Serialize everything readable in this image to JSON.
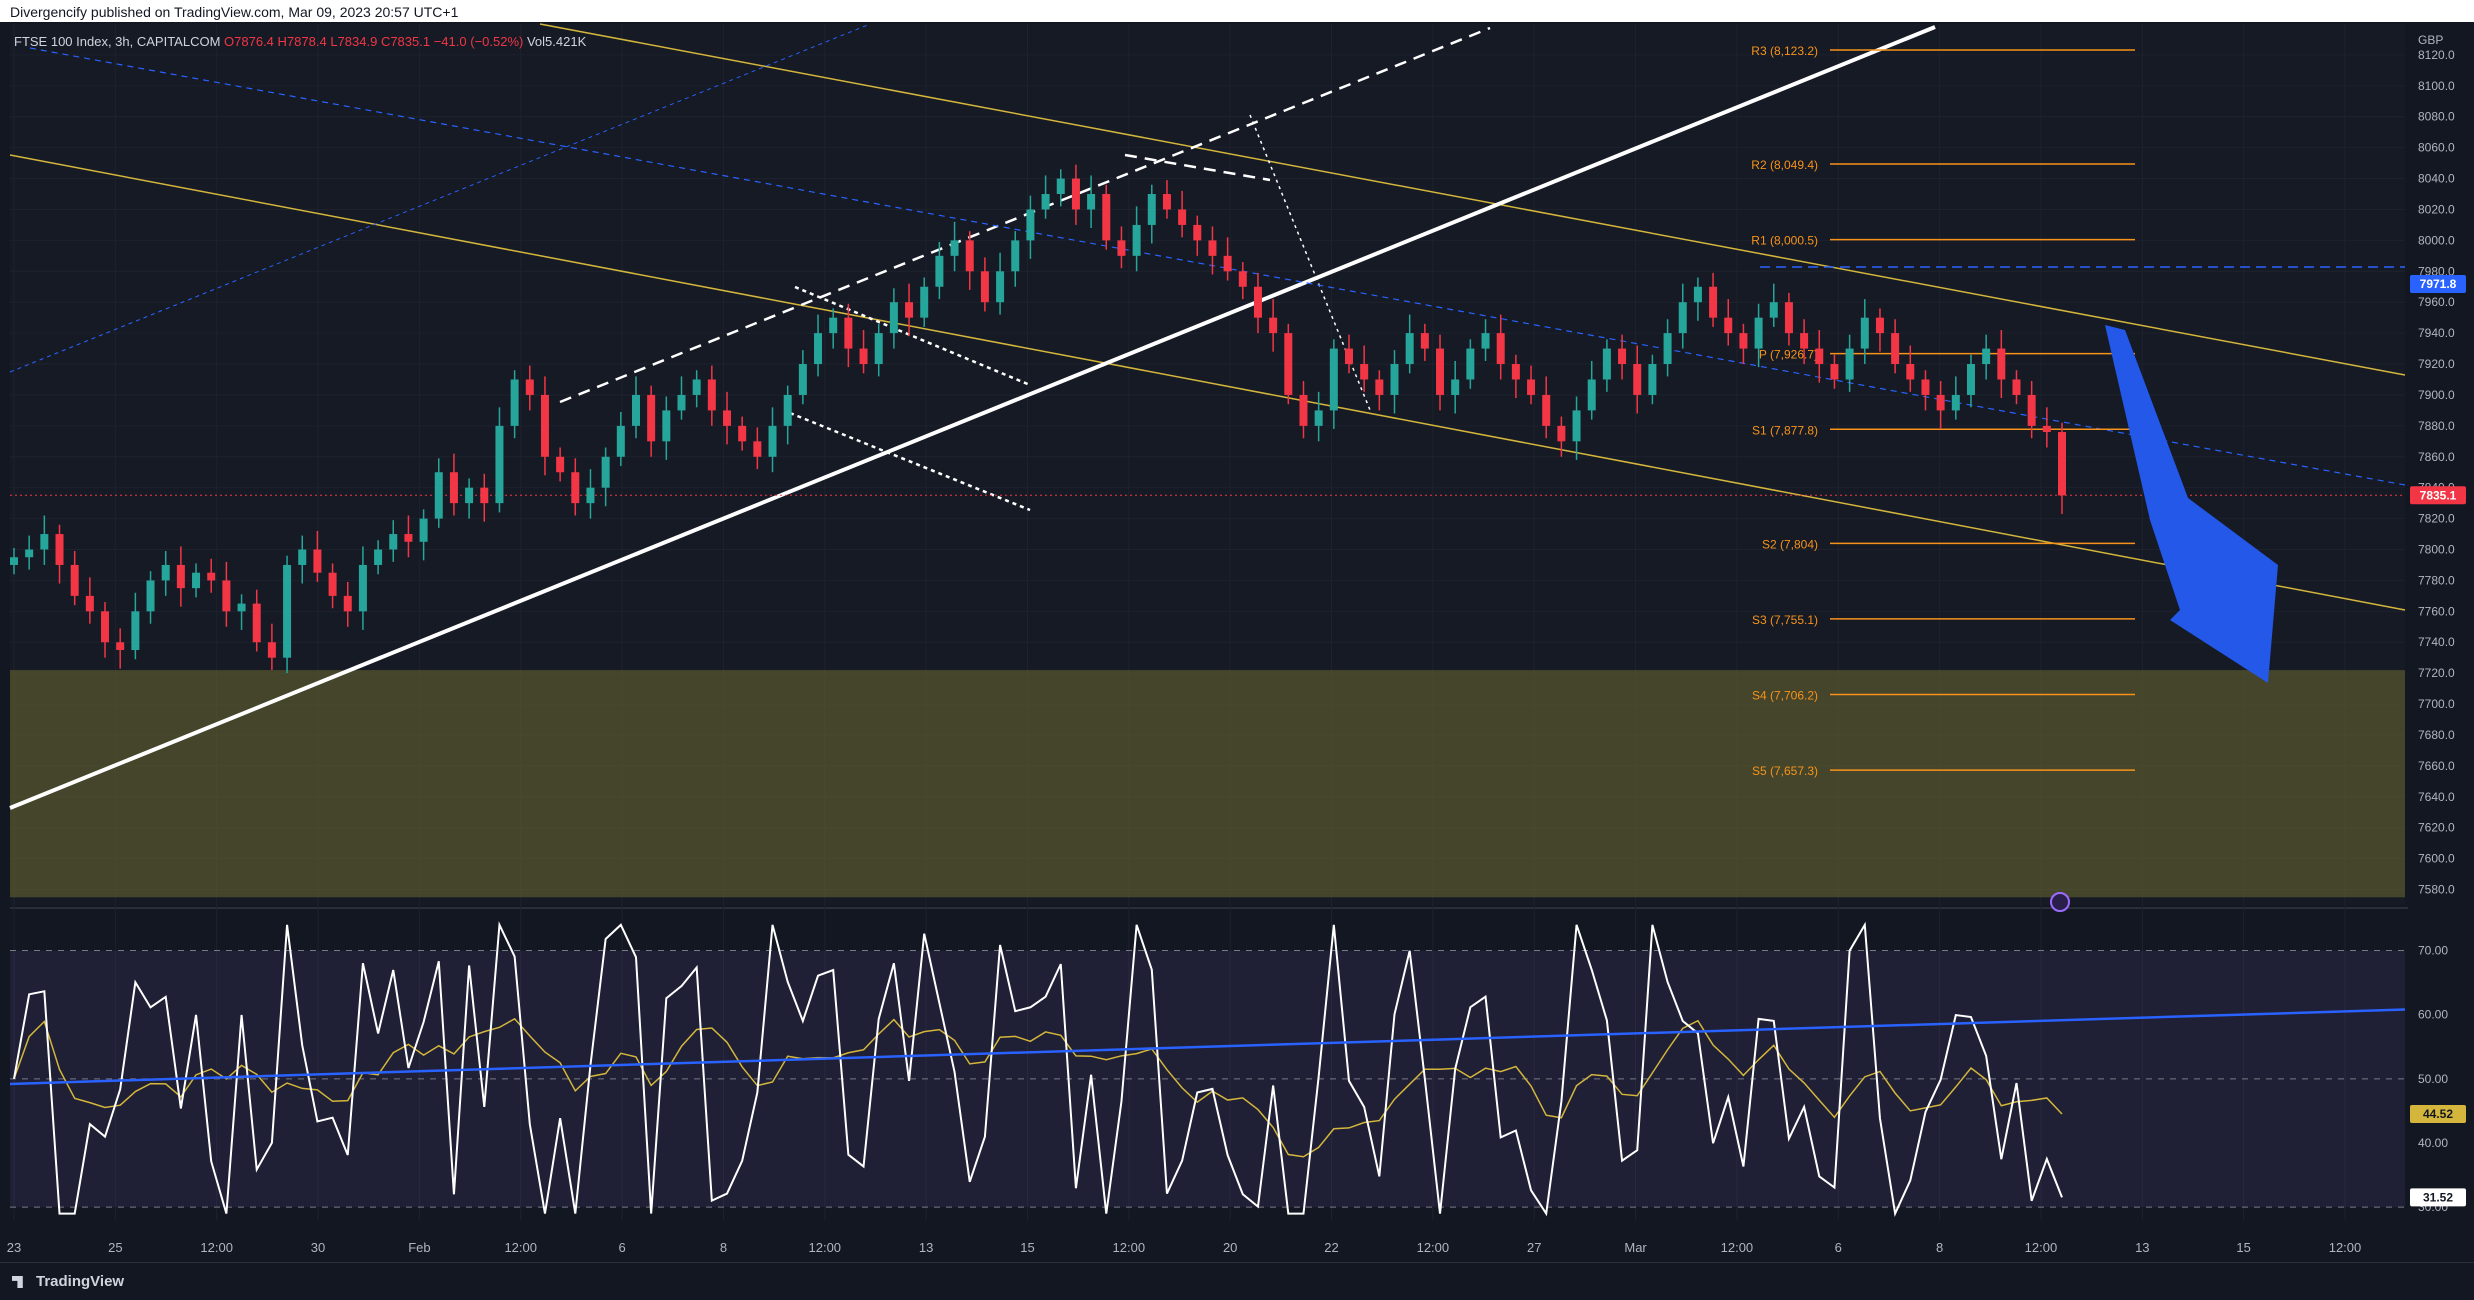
{
  "header": {
    "publisher": "Divergencify published on TradingView.com, Mar 09, 2023 20:57 UTC+1"
  },
  "legend": {
    "symbol": "FTSE 100 Index, 3h, CAPITALCOM",
    "open": "O7876.4",
    "high": "H7878.4",
    "low": "L7834.9",
    "close": "C7835.1",
    "change": "−41.0 (−0.52%)",
    "volume": "Vol5.421K"
  },
  "footer": {
    "brand": "TradingView"
  },
  "chart_data": [
    {
      "type": "candlestick",
      "title": "FTSE 100 Index, 3h, CAPITALCOM",
      "currency": "GBP",
      "ylim": [
        7570,
        8140
      ],
      "y_ticks": [
        7580,
        7600,
        7620,
        7640,
        7660,
        7680,
        7700,
        7720,
        7740,
        7760,
        7780,
        7800,
        7820,
        7840,
        7860,
        7880,
        7900,
        7920,
        7940,
        7960,
        7980,
        8000,
        8020,
        8040,
        8060,
        8080,
        8100,
        8120
      ],
      "y_tick_labels": [
        "7580.0",
        "7600.0",
        "7620.0",
        "7640.0",
        "7660.0",
        "7680.0",
        "7700.0",
        "7720.0",
        "7740.0",
        "7760.0",
        "7780.0",
        "7800.0",
        "7820.0",
        "7840.0",
        "7860.0",
        "7880.0",
        "7900.0",
        "7920.0",
        "7940.0",
        "7960.0",
        "7980.0",
        "8000.0",
        "8020.0",
        "8040.0",
        "8060.0",
        "8080.0",
        "8100.0",
        "8120.0"
      ],
      "x_tick_labels": [
        "23",
        "25",
        "12:00",
        "30",
        "Feb",
        "12:00",
        "6",
        "8",
        "12:00",
        "13",
        "15",
        "12:00",
        "20",
        "22",
        "12:00",
        "27",
        "Mar",
        "12:00",
        "6",
        "8",
        "12:00",
        "13",
        "15",
        "12:00"
      ],
      "close_series": [
        7795,
        7800,
        7810,
        7790,
        7770,
        7760,
        7740,
        7735,
        7760,
        7780,
        7790,
        7775,
        7785,
        7780,
        7760,
        7765,
        7740,
        7730,
        7790,
        7800,
        7785,
        7770,
        7760,
        7790,
        7800,
        7810,
        7805,
        7820,
        7850,
        7830,
        7840,
        7830,
        7880,
        7910,
        7900,
        7860,
        7850,
        7830,
        7840,
        7860,
        7880,
        7900,
        7870,
        7890,
        7900,
        7910,
        7890,
        7880,
        7870,
        7860,
        7880,
        7900,
        7920,
        7940,
        7950,
        7930,
        7920,
        7940,
        7960,
        7950,
        7970,
        7990,
        8000,
        7980,
        7960,
        7980,
        8000,
        8020,
        8030,
        8040,
        8020,
        8030,
        8000,
        7990,
        8010,
        8030,
        8020,
        8010,
        8000,
        7990,
        7980,
        7970,
        7950,
        7940,
        7900,
        7880,
        7890,
        7930,
        7920,
        7910,
        7900,
        7920,
        7940,
        7930,
        7900,
        7910,
        7930,
        7940,
        7920,
        7910,
        7900,
        7880,
        7870,
        7890,
        7910,
        7930,
        7920,
        7900,
        7920,
        7940,
        7960,
        7970,
        7950,
        7940,
        7930,
        7950,
        7960,
        7940,
        7930,
        7920,
        7910,
        7930,
        7950,
        7940,
        7920,
        7910,
        7900,
        7890,
        7900,
        7920,
        7930,
        7910,
        7900,
        7880,
        7876,
        7835
      ],
      "last_close": "7835.1",
      "last_close_color": "#f23645",
      "marked_level": "7971.8",
      "marked_level_color": "#2962ff",
      "pivots": [
        {
          "label": "R3 (8,123.2)",
          "value": 8123.2
        },
        {
          "label": "R2 (8,049.4)",
          "value": 8049.4
        },
        {
          "label": "R1 (8,000.5)",
          "value": 8000.5
        },
        {
          "label": "P (7,926.7)",
          "value": 7926.7
        },
        {
          "label": "S1 (7,877.8)",
          "value": 7877.8
        },
        {
          "label": "S2 (7,804)",
          "value": 7804
        },
        {
          "label": "S3 (7,755.1)",
          "value": 7755.1
        },
        {
          "label": "S4 (7,706.2)",
          "value": 7706.2
        },
        {
          "label": "S5 (7,657.3)",
          "value": 7657.3
        }
      ],
      "support_zone": [
        7575,
        7722
      ],
      "annotation": "down-arrow-projection"
    },
    {
      "type": "line",
      "title": "RSI",
      "ylim": [
        28,
        76
      ],
      "y_tick_labels": [
        "70.00",
        "60.00",
        "50.00",
        "40.00",
        "30.00"
      ],
      "y_ticks": [
        70,
        60,
        50,
        40,
        30
      ],
      "bands": [
        30,
        50,
        70
      ],
      "last_rsi": "31.52",
      "last_ma": "44.52",
      "ma_color": "#d4b63c",
      "trendline_color": "#2962ff"
    }
  ]
}
